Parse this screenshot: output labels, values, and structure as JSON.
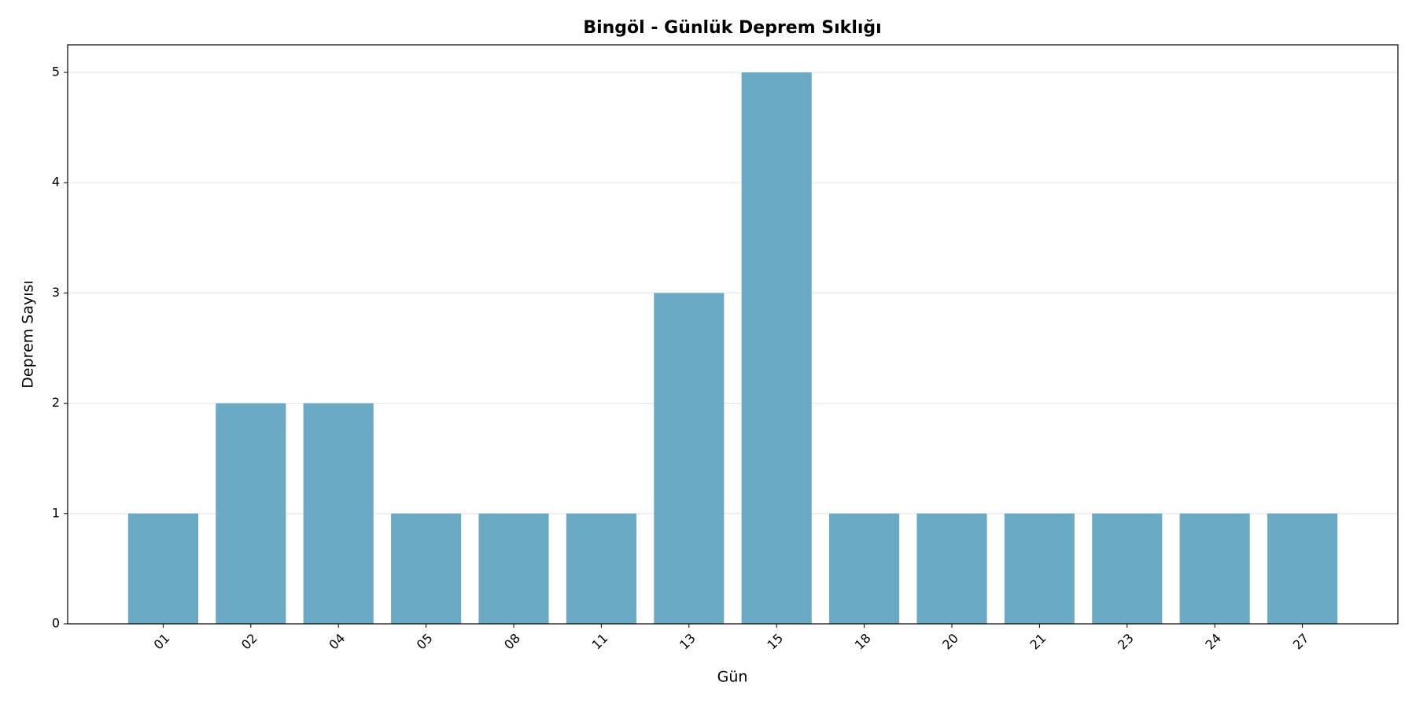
{
  "chart_data": {
    "type": "bar",
    "title": "Bingöl - Günlük Deprem Sıklığı",
    "x_label": "Gün",
    "y_label": "Deprem Sayısı",
    "categories": [
      "01",
      "02",
      "04",
      "05",
      "08",
      "11",
      "13",
      "15",
      "18",
      "20",
      "21",
      "23",
      "24",
      "27"
    ],
    "values": [
      1,
      2,
      2,
      1,
      1,
      1,
      3,
      5,
      1,
      1,
      1,
      1,
      1,
      1
    ],
    "color": "#6aaac5",
    "ylim": [
      0,
      5.25
    ],
    "yticks": [
      0,
      1,
      2,
      3,
      4,
      5
    ],
    "grid": true
  }
}
